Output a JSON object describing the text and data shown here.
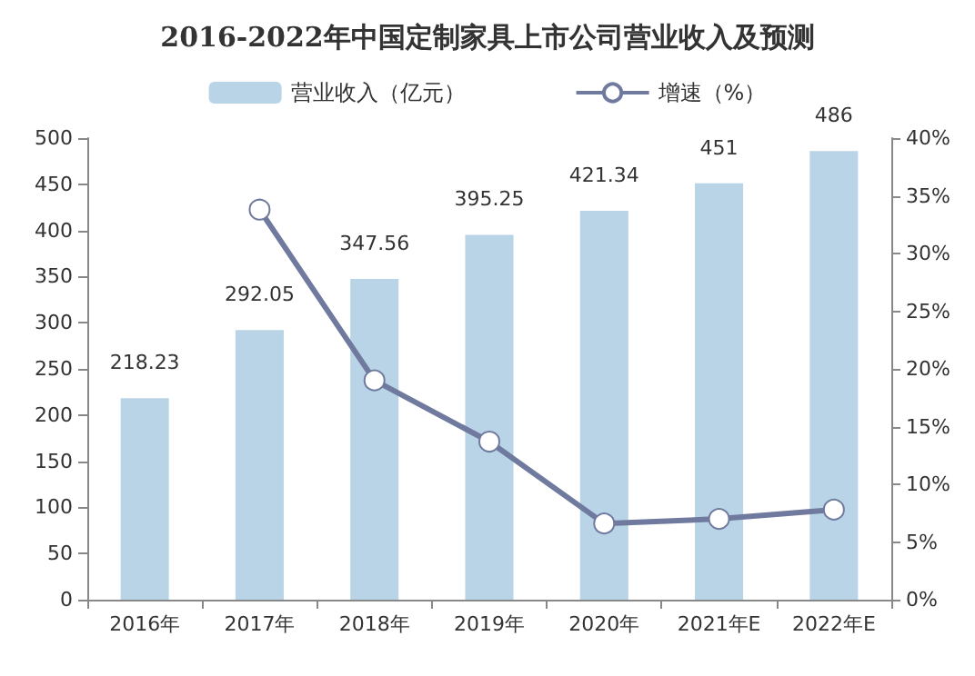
{
  "chart_data": {
    "type": "bar",
    "title": "2016-2022年中国定制家具上市公司营业收入及预测",
    "categories": [
      "2016年",
      "2017年",
      "2018年",
      "2019年",
      "2020年",
      "2021年E",
      "2022年E"
    ],
    "series": [
      {
        "name": "营业收入（亿元）",
        "color": "#b8d4e6",
        "values": [
          218.23,
          292.05,
          347.56,
          395.25,
          421.34,
          451,
          486
        ],
        "data_labels": true
      },
      {
        "name": "增速（%）",
        "type": "line",
        "axis": "y2",
        "color": "#6f7a9e",
        "values": [
          null,
          33.8,
          19.0,
          13.7,
          6.6,
          7.0,
          7.8
        ],
        "marker": "circle"
      }
    ],
    "ylim": [
      0,
      500
    ],
    "yticks": [
      0,
      50,
      100,
      150,
      200,
      250,
      300,
      350,
      400,
      450,
      500
    ],
    "y2lim": [
      0,
      40
    ],
    "y2ticks": [
      {
        "value": 0,
        "label": "0%"
      },
      {
        "value": 5,
        "label": "5%"
      },
      {
        "value": 10,
        "label": "10%"
      },
      {
        "value": 15,
        "label": "15%"
      },
      {
        "value": 20,
        "label": "20%"
      },
      {
        "value": 25,
        "label": "25%"
      },
      {
        "value": 30,
        "label": "30%"
      },
      {
        "value": 35,
        "label": "35%"
      },
      {
        "value": 40,
        "label": "40%"
      }
    ],
    "legend": "top",
    "grid": false
  }
}
